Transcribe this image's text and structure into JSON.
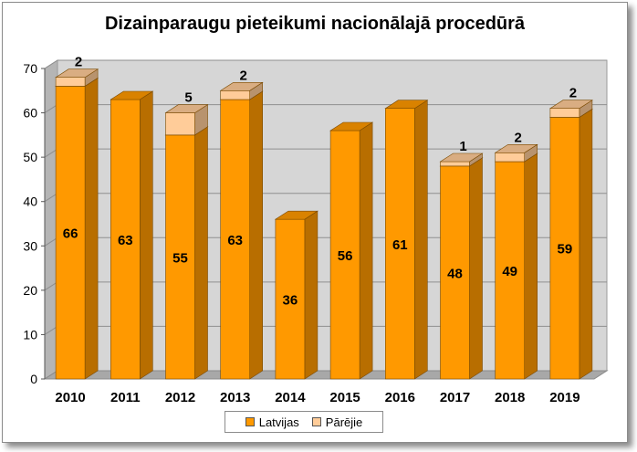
{
  "chart_data": {
    "type": "bar",
    "stacked": true,
    "three_d": true,
    "title": "Dizainparaugu pieteikumi nacionālajā procedūrā",
    "categories": [
      "2010",
      "2011",
      "2012",
      "2013",
      "2014",
      "2015",
      "2016",
      "2017",
      "2018",
      "2019"
    ],
    "series": [
      {
        "name": "Latvijas",
        "color": "#ff9900",
        "values": [
          66,
          63,
          55,
          63,
          36,
          56,
          61,
          48,
          49,
          59
        ]
      },
      {
        "name": "Pārējie",
        "color": "#ffcc99",
        "values": [
          2,
          null,
          5,
          2,
          null,
          null,
          null,
          1,
          2,
          2
        ]
      }
    ],
    "ylim": [
      0,
      70
    ],
    "yticks": [
      0,
      10,
      20,
      30,
      40,
      50,
      60,
      70
    ],
    "grid": true,
    "legend_position": "bottom"
  }
}
